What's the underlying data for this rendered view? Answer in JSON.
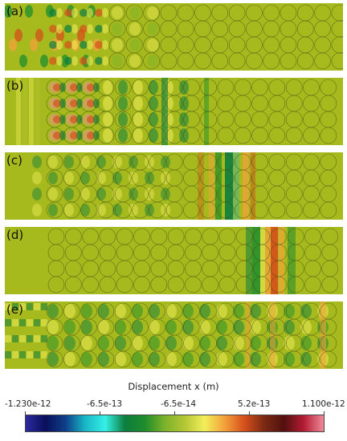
{
  "panels": [
    {
      "label": "(a)",
      "pattern": "a"
    },
    {
      "label": "(b)",
      "pattern": "b"
    },
    {
      "label": "(c)",
      "pattern": "c"
    },
    {
      "label": "(d)",
      "pattern": "d"
    },
    {
      "label": "(e)",
      "pattern": "e"
    }
  ],
  "colors": {
    "background": "#a7ba1d",
    "circle_stroke": "#3f4a16",
    "colormap": [
      "#2b2aa0",
      "#0a0f5a",
      "#0e3f8a",
      "#19b7c6",
      "#34f0e6",
      "#0d7d3e",
      "#1f8d2c",
      "#7bb22a",
      "#b5c634",
      "#f2ef5a",
      "#f3a23b",
      "#d6501b",
      "#7b2a13",
      "#52100f",
      "#b31c32",
      "#f08b9c"
    ]
  },
  "legend": {
    "title": "Displacement x (m)",
    "ticks": [
      "-1.230e-12",
      "-6.5e-13",
      "-6.5e-14",
      "5.2e-13",
      "1.100e-12"
    ]
  }
}
